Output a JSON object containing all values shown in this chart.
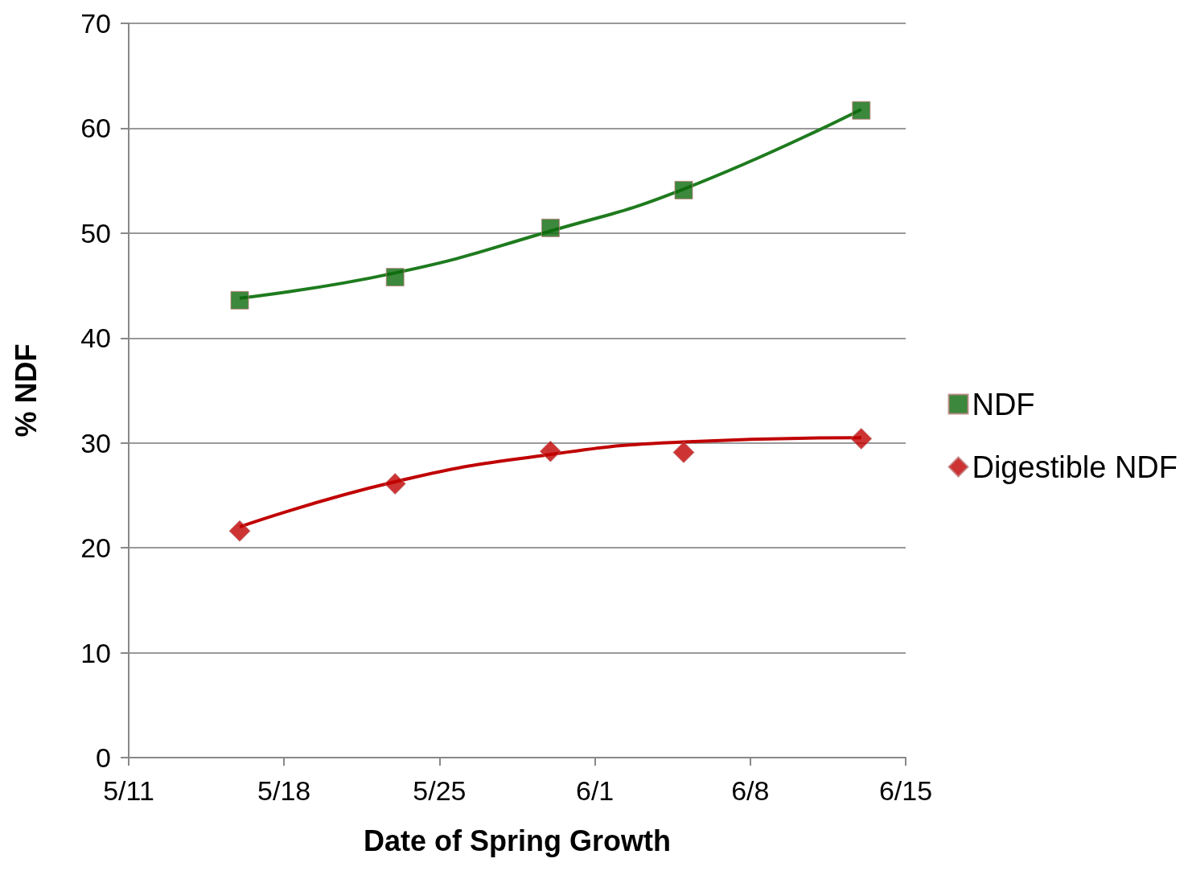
{
  "chart_data": {
    "type": "scatter",
    "xlabel": "Date of Spring Growth",
    "ylabel": "% NDF",
    "xlim": [
      "--05-11",
      "--06-15"
    ],
    "xticks": [
      {
        "value": "--05-11",
        "label": "5/11"
      },
      {
        "value": "--05-18",
        "label": "5/18"
      },
      {
        "value": "--05-25",
        "label": "5/25"
      },
      {
        "value": "--06-01",
        "label": "6/1"
      },
      {
        "value": "--06-08",
        "label": "6/8"
      },
      {
        "value": "--06-15",
        "label": "6/15"
      }
    ],
    "ylim": [
      0,
      70
    ],
    "yticks": [
      0,
      10,
      20,
      30,
      40,
      50,
      60,
      70
    ],
    "grid": "y",
    "legend": "right",
    "series": [
      {
        "name": "NDF",
        "color": "#0b6a0b",
        "marker": "square",
        "x": [
          "--05-16",
          "--05-23",
          "--05-30",
          "--06-05",
          "--06-13"
        ],
        "values": [
          43.6,
          45.8,
          50.5,
          54.1,
          61.7
        ]
      },
      {
        "name": "Digestible NDF",
        "color": "#c00000",
        "marker": "diamond",
        "x": [
          "--05-16",
          "--05-23",
          "--05-30",
          "--06-05",
          "--06-13"
        ],
        "values": [
          21.6,
          26.1,
          29.2,
          29.1,
          30.4
        ]
      },
      {
        "type": "line",
        "color": "#1e7b1e",
        "marker": "none",
        "x": [
          "--05-16",
          "--05-23",
          "--05-30",
          "--06-05",
          "--06-13"
        ],
        "values": [
          43.8,
          46.2,
          50.2,
          54.2,
          61.8
        ]
      },
      {
        "type": "line",
        "color": "#c00000",
        "marker": "none",
        "x": [
          "--05-16",
          "--05-23",
          "--05-30",
          "--06-05",
          "--06-13"
        ],
        "values": [
          22,
          26.3,
          28.9,
          30.1,
          30.5
        ]
      }
    ]
  }
}
